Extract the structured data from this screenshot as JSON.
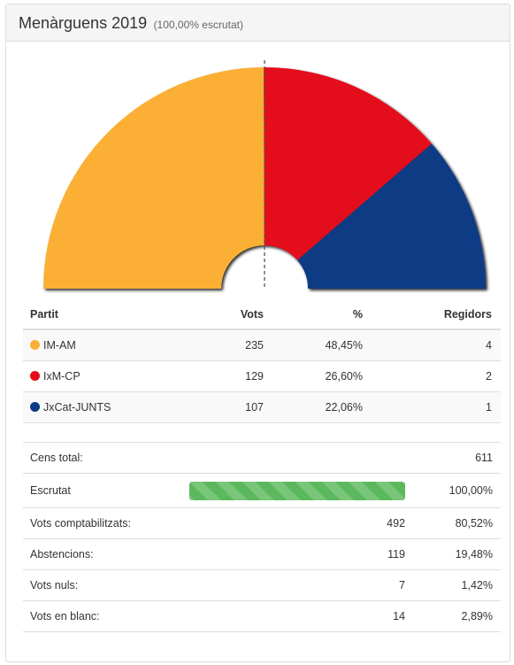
{
  "header": {
    "title": "Menàrguens 2019",
    "subtitle": "(100,00% escrutat)"
  },
  "chart_data": {
    "type": "pie",
    "shape": "hemicycle",
    "majority_line": true,
    "series": [
      {
        "name": "IM-AM",
        "value": 235,
        "percent": "48,45%",
        "seats": 4,
        "color": "#fbb034"
      },
      {
        "name": "IxM-CP",
        "value": 129,
        "percent": "26,60%",
        "seats": 2,
        "color": "#e30d1a"
      },
      {
        "name": "JxCat-JUNTS",
        "value": 107,
        "percent": "22,06%",
        "seats": 1,
        "color": "#0c3a84"
      }
    ]
  },
  "results_table": {
    "headers": {
      "party": "Partit",
      "votes": "Vots",
      "percent": "%",
      "seats": "Regidors"
    },
    "rows": [
      {
        "party": "IM-AM",
        "votes": "235",
        "percent": "48,45%",
        "seats": "4",
        "color": "#fbb034"
      },
      {
        "party": "IxM-CP",
        "votes": "129",
        "percent": "26,60%",
        "seats": "2",
        "color": "#e30d1a"
      },
      {
        "party": "JxCat-JUNTS",
        "votes": "107",
        "percent": "22,06%",
        "seats": "1",
        "color": "#0c3a84"
      }
    ]
  },
  "stats": {
    "census": {
      "label": "Cens total:",
      "value": "611"
    },
    "scrutiny": {
      "label": "Escrutat",
      "value": "100,00%",
      "progress": 1.0,
      "color": "#5cb85c"
    },
    "counted": {
      "label": "Vots comptabilitzats:",
      "value": "492",
      "percent": "80,52%"
    },
    "abstentions": {
      "label": "Abstencions:",
      "value": "119",
      "percent": "19,48%"
    },
    "null_votes": {
      "label": "Vots nuls:",
      "value": "7",
      "percent": "1,42%"
    },
    "blank_votes": {
      "label": "Vots en blanc:",
      "value": "14",
      "percent": "2,89%"
    }
  }
}
